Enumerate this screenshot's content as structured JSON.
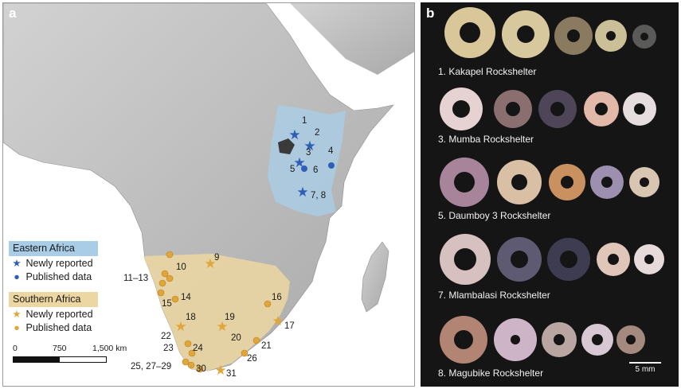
{
  "panel_a": {
    "letter": "a",
    "legend": {
      "eastern": {
        "title": "Eastern Africa",
        "newly": "Newly reported",
        "published": "Published data",
        "color": "#2f5fb5",
        "region_color": "#a9cde6"
      },
      "southern": {
        "title": "Southern Africa",
        "newly": "Newly reported",
        "published": "Published data",
        "color": "#e0a63a",
        "region_color": "#ecd7a2"
      }
    },
    "scale_labels": [
      "0",
      "750",
      "1,500 km"
    ],
    "site_labels": [
      "1",
      "2",
      "3",
      "4",
      "5",
      "6",
      "7, 8",
      "9",
      "10",
      "11–13",
      "14",
      "15",
      "16",
      "17",
      "18",
      "19",
      "20",
      "21",
      "22",
      "23",
      "24",
      "25, 27–29",
      "26",
      "30",
      "31"
    ]
  },
  "panel_b": {
    "letter": "b",
    "shelters": [
      "1. Kakapel Rockshelter",
      "3. Mumba Rockshelter",
      "5. Daumboy 3 Rockshelter",
      "7. Mlambalasi Rockshelter",
      "8. Magubike Rockshelter"
    ],
    "scale_label": "5 mm"
  }
}
